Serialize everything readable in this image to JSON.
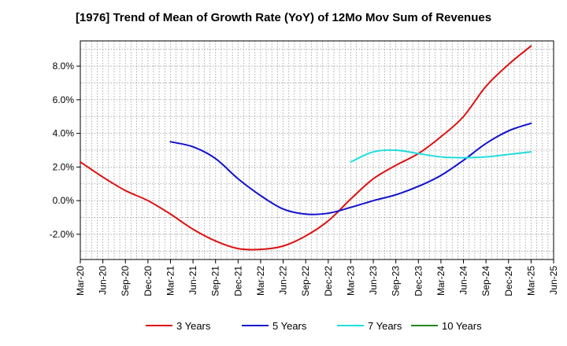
{
  "chart_data": {
    "type": "line",
    "title": "[1976]  Trend of Mean of Growth Rate (YoY) of 12Mo Mov Sum of Revenues",
    "xlabel": "",
    "ylabel": "",
    "grid": true,
    "legend_position": "bottom",
    "ylim": [
      -3.5,
      9.5
    ],
    "y_ticks": [
      -2.0,
      0.0,
      2.0,
      4.0,
      6.0,
      8.0
    ],
    "y_tick_labels": [
      "-2.0%",
      "0.0%",
      "2.0%",
      "4.0%",
      "6.0%",
      "8.0%"
    ],
    "categories": [
      "Mar-20",
      "Jun-20",
      "Sep-20",
      "Dec-20",
      "Mar-21",
      "Jun-21",
      "Sep-21",
      "Dec-21",
      "Mar-22",
      "Jun-22",
      "Sep-22",
      "Dec-22",
      "Mar-23",
      "Jun-23",
      "Sep-23",
      "Dec-23",
      "Mar-24",
      "Jun-24",
      "Sep-24",
      "Dec-24",
      "Mar-25",
      "Jun-25"
    ],
    "series": [
      {
        "name": "3 Years",
        "color": "#dd1111",
        "values": [
          2.3,
          1.4,
          0.6,
          0.0,
          -0.8,
          -1.7,
          -2.4,
          -2.85,
          -2.9,
          -2.7,
          -2.1,
          -1.2,
          0.1,
          1.3,
          2.1,
          2.8,
          3.8,
          5.0,
          6.8,
          8.1,
          9.2,
          null
        ]
      },
      {
        "name": "5 Years",
        "color": "#1111cc",
        "values": [
          null,
          null,
          null,
          null,
          3.5,
          3.2,
          2.5,
          1.3,
          0.3,
          -0.5,
          -0.8,
          -0.75,
          -0.4,
          0.0,
          0.35,
          0.85,
          1.5,
          2.4,
          3.4,
          4.15,
          4.6,
          null
        ]
      },
      {
        "name": "7 Years",
        "color": "#22dddd",
        "values": [
          null,
          null,
          null,
          null,
          null,
          null,
          null,
          null,
          null,
          null,
          null,
          null,
          2.3,
          2.9,
          3.0,
          2.8,
          2.6,
          2.55,
          2.6,
          2.75,
          2.9,
          null
        ]
      },
      {
        "name": "10 Years",
        "color": "#228822",
        "values": [
          null,
          null,
          null,
          null,
          null,
          null,
          null,
          null,
          null,
          null,
          null,
          null,
          null,
          null,
          null,
          null,
          null,
          null,
          null,
          null,
          null,
          null
        ]
      }
    ]
  }
}
